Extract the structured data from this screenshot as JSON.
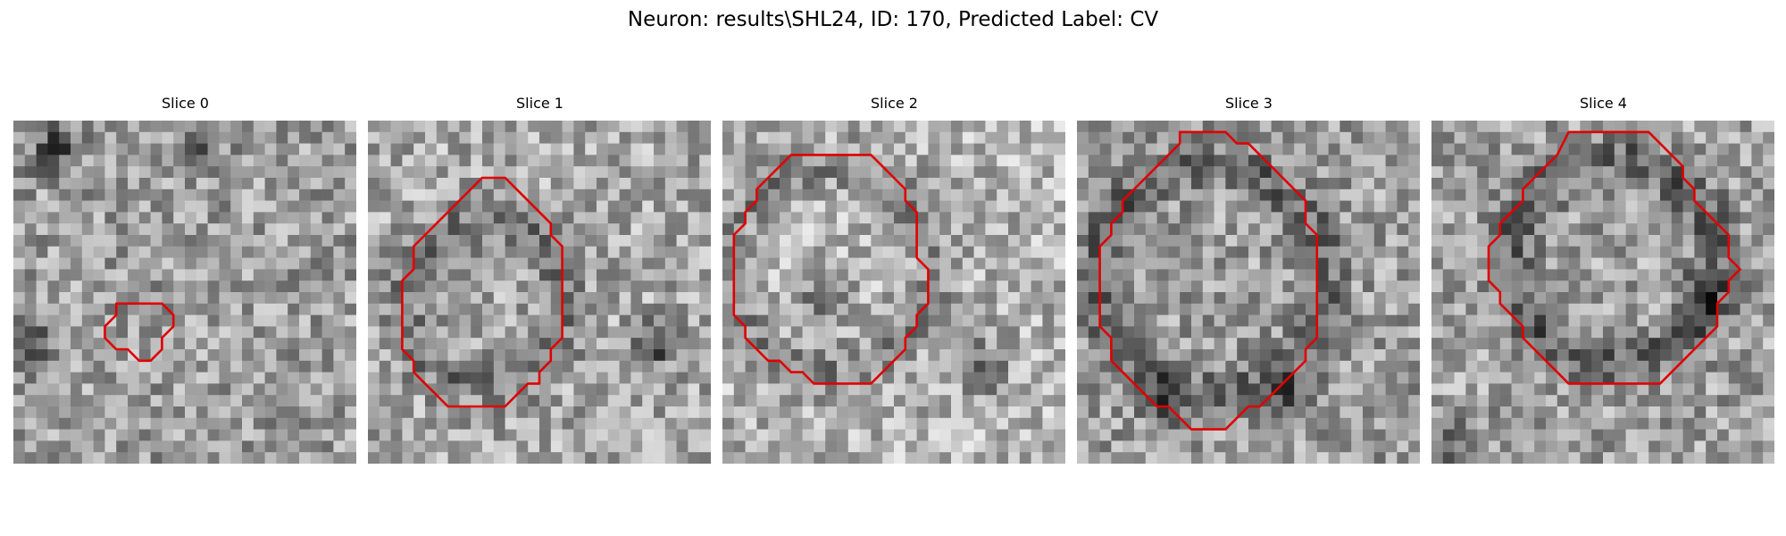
{
  "figure": {
    "title": "Neuron: results\\SHL24, ID: 170, Predicted Label: CV"
  },
  "panels": [
    {
      "title": "Slice 0",
      "contour": [
        [
          9,
          16
        ],
        [
          13,
          16
        ],
        [
          14,
          17
        ],
        [
          14,
          18
        ],
        [
          13,
          19
        ],
        [
          13,
          20
        ],
        [
          12,
          21
        ],
        [
          11,
          21
        ],
        [
          10,
          20
        ],
        [
          9,
          20
        ],
        [
          8,
          19
        ],
        [
          8,
          18
        ],
        [
          9,
          17
        ]
      ]
    },
    {
      "title": "Slice 1",
      "contour": [
        [
          10,
          5
        ],
        [
          12,
          5
        ],
        [
          13,
          6
        ],
        [
          14,
          7
        ],
        [
          15,
          8
        ],
        [
          16,
          9
        ],
        [
          16,
          10
        ],
        [
          17,
          11
        ],
        [
          17,
          12
        ],
        [
          17,
          13
        ],
        [
          17,
          14
        ],
        [
          17,
          15
        ],
        [
          17,
          16
        ],
        [
          17,
          17
        ],
        [
          17,
          18
        ],
        [
          17,
          19
        ],
        [
          16,
          20
        ],
        [
          16,
          21
        ],
        [
          15,
          22
        ],
        [
          15,
          23
        ],
        [
          14,
          23
        ],
        [
          13,
          24
        ],
        [
          12,
          25
        ],
        [
          11,
          25
        ],
        [
          10,
          25
        ],
        [
          9,
          25
        ],
        [
          8,
          25
        ],
        [
          7,
          25
        ],
        [
          6,
          24
        ],
        [
          5,
          23
        ],
        [
          4,
          22
        ],
        [
          4,
          21
        ],
        [
          3,
          20
        ],
        [
          3,
          19
        ],
        [
          3,
          18
        ],
        [
          3,
          17
        ],
        [
          3,
          16
        ],
        [
          3,
          15
        ],
        [
          3,
          14
        ],
        [
          4,
          13
        ],
        [
          4,
          12
        ],
        [
          4,
          11
        ],
        [
          5,
          10
        ],
        [
          6,
          9
        ],
        [
          7,
          8
        ],
        [
          8,
          7
        ],
        [
          9,
          6
        ]
      ]
    },
    {
      "title": "Slice 2",
      "contour": [
        [
          6,
          3
        ],
        [
          7,
          3
        ],
        [
          8,
          3
        ],
        [
          9,
          3
        ],
        [
          10,
          3
        ],
        [
          11,
          3
        ],
        [
          12,
          3
        ],
        [
          13,
          3
        ],
        [
          14,
          4
        ],
        [
          15,
          5
        ],
        [
          16,
          6
        ],
        [
          16,
          7
        ],
        [
          17,
          8
        ],
        [
          17,
          9
        ],
        [
          17,
          10
        ],
        [
          17,
          11
        ],
        [
          17,
          12
        ],
        [
          18,
          13
        ],
        [
          18,
          14
        ],
        [
          18,
          15
        ],
        [
          18,
          16
        ],
        [
          17,
          17
        ],
        [
          17,
          18
        ],
        [
          16,
          19
        ],
        [
          16,
          20
        ],
        [
          15,
          21
        ],
        [
          14,
          22
        ],
        [
          13,
          23
        ],
        [
          12,
          23
        ],
        [
          11,
          23
        ],
        [
          10,
          23
        ],
        [
          9,
          23
        ],
        [
          8,
          23
        ],
        [
          7,
          22
        ],
        [
          6,
          22
        ],
        [
          5,
          21
        ],
        [
          4,
          21
        ],
        [
          3,
          20
        ],
        [
          2,
          19
        ],
        [
          2,
          18
        ],
        [
          1,
          17
        ],
        [
          1,
          16
        ],
        [
          1,
          15
        ],
        [
          1,
          14
        ],
        [
          1,
          13
        ],
        [
          1,
          12
        ],
        [
          1,
          11
        ],
        [
          1,
          10
        ],
        [
          2,
          9
        ],
        [
          2,
          8
        ],
        [
          3,
          7
        ],
        [
          3,
          6
        ],
        [
          4,
          5
        ],
        [
          5,
          4
        ]
      ]
    },
    {
      "title": "Slice 3",
      "contour": [
        [
          9,
          1
        ],
        [
          10,
          1
        ],
        [
          11,
          1
        ],
        [
          12,
          1
        ],
        [
          13,
          1
        ],
        [
          14,
          2
        ],
        [
          15,
          2
        ],
        [
          16,
          3
        ],
        [
          17,
          4
        ],
        [
          18,
          5
        ],
        [
          19,
          6
        ],
        [
          20,
          7
        ],
        [
          20,
          8
        ],
        [
          20,
          9
        ],
        [
          21,
          10
        ],
        [
          21,
          11
        ],
        [
          21,
          12
        ],
        [
          21,
          13
        ],
        [
          21,
          14
        ],
        [
          21,
          15
        ],
        [
          21,
          16
        ],
        [
          21,
          17
        ],
        [
          21,
          18
        ],
        [
          21,
          19
        ],
        [
          20,
          20
        ],
        [
          20,
          21
        ],
        [
          19,
          22
        ],
        [
          18,
          23
        ],
        [
          17,
          24
        ],
        [
          16,
          25
        ],
        [
          15,
          25
        ],
        [
          14,
          26
        ],
        [
          13,
          27
        ],
        [
          12,
          27
        ],
        [
          11,
          27
        ],
        [
          10,
          27
        ],
        [
          9,
          26
        ],
        [
          8,
          25
        ],
        [
          7,
          25
        ],
        [
          6,
          24
        ],
        [
          5,
          23
        ],
        [
          4,
          22
        ],
        [
          3,
          21
        ],
        [
          3,
          20
        ],
        [
          3,
          19
        ],
        [
          2,
          18
        ],
        [
          2,
          17
        ],
        [
          2,
          16
        ],
        [
          2,
          15
        ],
        [
          2,
          14
        ],
        [
          2,
          13
        ],
        [
          2,
          12
        ],
        [
          2,
          11
        ],
        [
          3,
          10
        ],
        [
          3,
          9
        ],
        [
          4,
          8
        ],
        [
          4,
          7
        ],
        [
          5,
          6
        ],
        [
          6,
          5
        ],
        [
          7,
          4
        ],
        [
          8,
          3
        ],
        [
          9,
          2
        ]
      ]
    },
    {
      "title": "Slice 4",
      "contour": [
        [
          12,
          1
        ],
        [
          13,
          1
        ],
        [
          14,
          1
        ],
        [
          15,
          1
        ],
        [
          16,
          1
        ],
        [
          17,
          1
        ],
        [
          18,
          1
        ],
        [
          19,
          1
        ],
        [
          20,
          2
        ],
        [
          21,
          3
        ],
        [
          22,
          4
        ],
        [
          22,
          5
        ],
        [
          23,
          6
        ],
        [
          23,
          7
        ],
        [
          24,
          8
        ],
        [
          25,
          9
        ],
        [
          26,
          10
        ],
        [
          26,
          11
        ],
        [
          26,
          12
        ],
        [
          27,
          13
        ],
        [
          26,
          14
        ],
        [
          26,
          15
        ],
        [
          25,
          16
        ],
        [
          25,
          17
        ],
        [
          25,
          18
        ],
        [
          24,
          19
        ],
        [
          23,
          20
        ],
        [
          22,
          21
        ],
        [
          21,
          22
        ],
        [
          20,
          23
        ],
        [
          19,
          23
        ],
        [
          18,
          23
        ],
        [
          17,
          23
        ],
        [
          16,
          23
        ],
        [
          15,
          23
        ],
        [
          14,
          23
        ],
        [
          13,
          23
        ],
        [
          12,
          23
        ],
        [
          11,
          22
        ],
        [
          10,
          21
        ],
        [
          9,
          20
        ],
        [
          8,
          19
        ],
        [
          8,
          18
        ],
        [
          7,
          17
        ],
        [
          6,
          16
        ],
        [
          6,
          15
        ],
        [
          5,
          14
        ],
        [
          5,
          13
        ],
        [
          5,
          12
        ],
        [
          5,
          11
        ],
        [
          6,
          10
        ],
        [
          6,
          9
        ],
        [
          7,
          8
        ],
        [
          8,
          7
        ],
        [
          8,
          6
        ],
        [
          9,
          5
        ],
        [
          10,
          4
        ],
        [
          11,
          3
        ]
      ]
    }
  ]
}
